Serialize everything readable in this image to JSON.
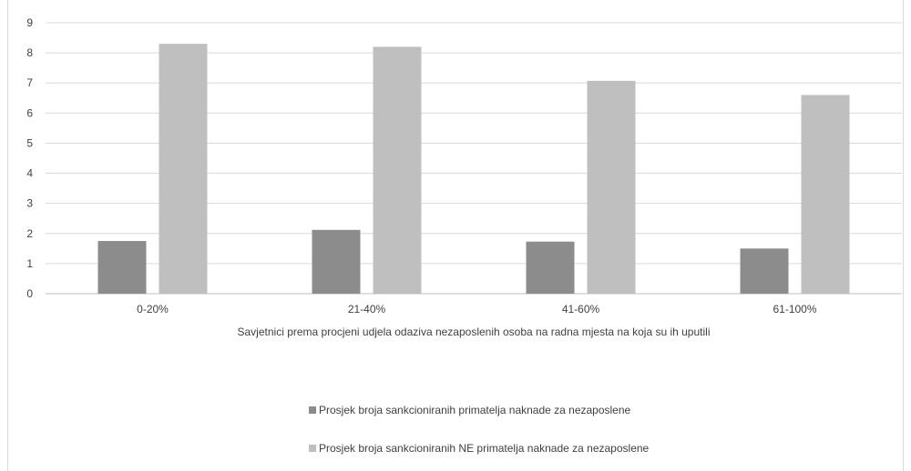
{
  "chart_data": {
    "type": "bar",
    "categories": [
      "0-20%",
      "21-40%",
      "41-60%",
      "61-100%"
    ],
    "series": [
      {
        "name": "Prosjek broja sankcioniranih primatelja naknade za nezaposlene",
        "values": [
          1.75,
          2.12,
          1.73,
          1.5
        ],
        "color": "#8c8c8c"
      },
      {
        "name": "Prosjek broja sankcioniranih NE primatelja naknade za nezaposlene",
        "values": [
          8.3,
          8.2,
          7.07,
          6.6
        ],
        "color": "#bfbfbf"
      }
    ],
    "title": "",
    "xlabel": "Savjetnici prema procjeni udjela odaziva nezaposlenih osoba na radna mjesta na koja su ih uputili",
    "ylabel": "",
    "ylim": [
      0,
      9
    ],
    "yticks": [
      "0",
      "1",
      "2",
      "3",
      "4",
      "5",
      "6",
      "7",
      "8",
      "9"
    ],
    "grid": true,
    "legend_position": "bottom"
  }
}
